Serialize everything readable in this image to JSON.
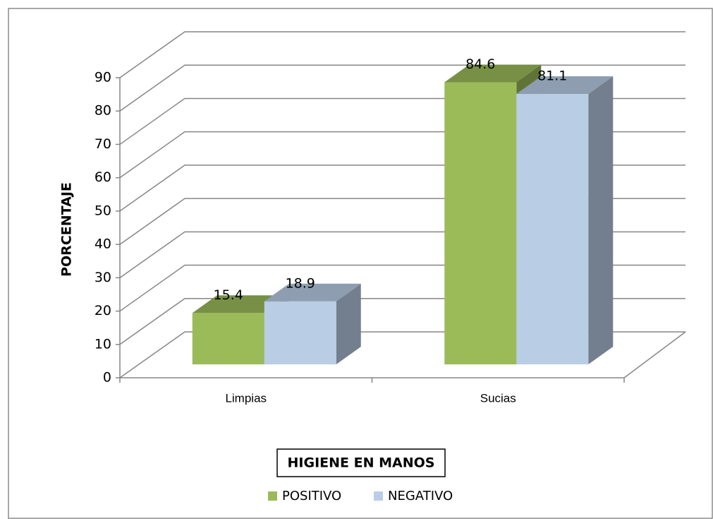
{
  "chart_data": {
    "type": "bar",
    "categories": [
      "Limpias",
      "Sucias"
    ],
    "series": [
      {
        "name": "POSITIVO",
        "color": "#9bbb59",
        "values": [
          15.4,
          84.6
        ]
      },
      {
        "name": "NEGATIVO",
        "color": "#b9cde5",
        "values": [
          18.9,
          81.1
        ]
      }
    ],
    "x_label": "HIGIENE EN MANOS",
    "y_label": "PORCENTAJE",
    "ylim": [
      0,
      90
    ],
    "yticks": [
      0,
      10,
      20,
      30,
      40,
      50,
      60,
      70,
      80,
      90
    ],
    "grid": true,
    "legend": "bottom"
  }
}
